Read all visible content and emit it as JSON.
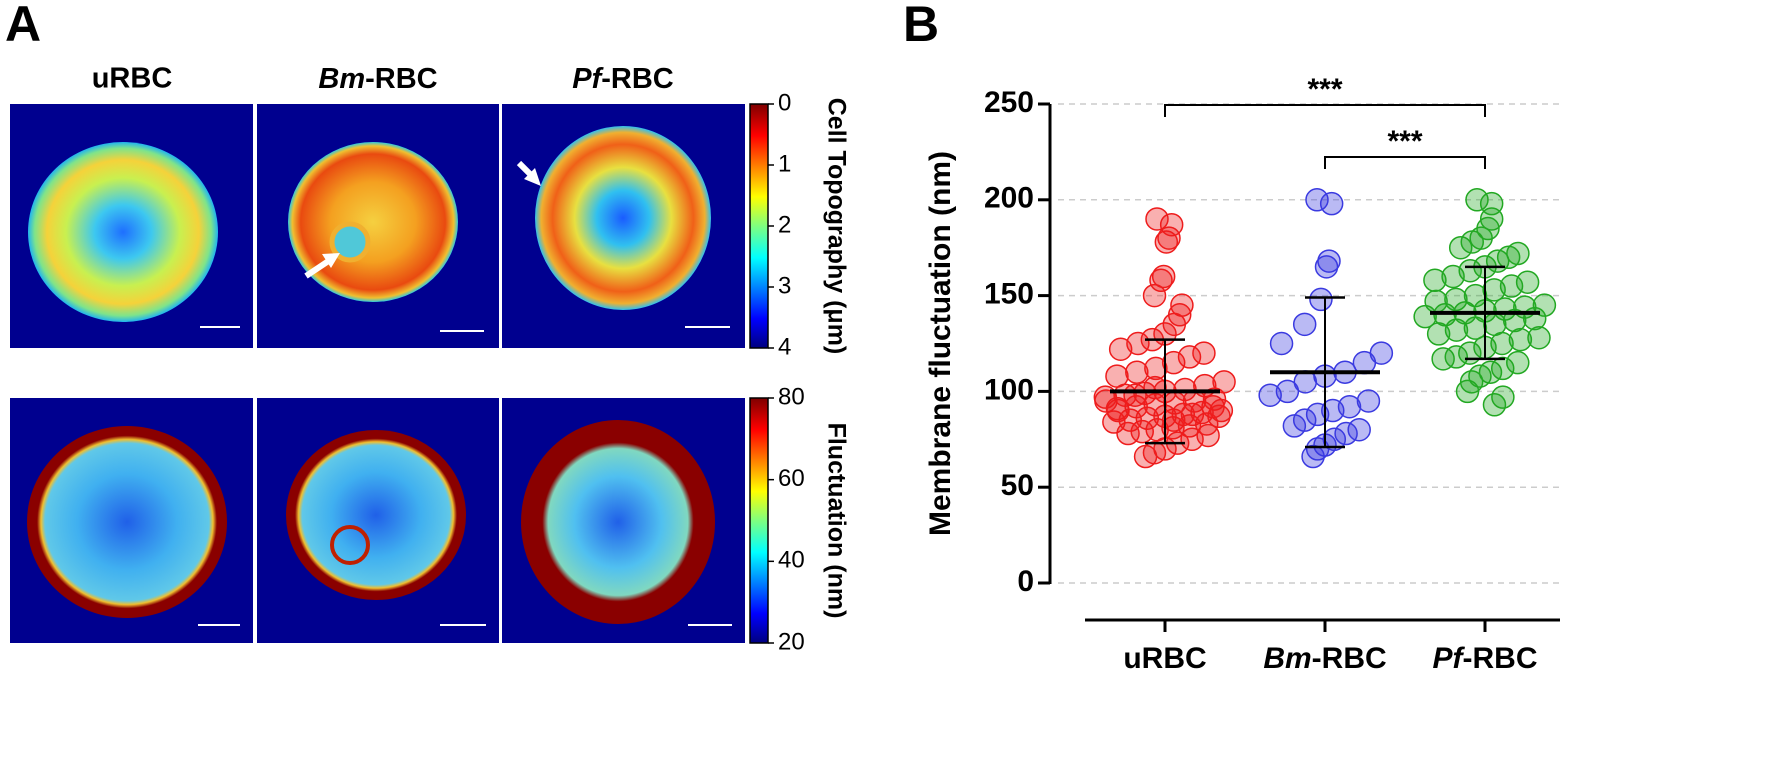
{
  "panel_a": {
    "label": "A",
    "columns": [
      "uRBC",
      "Bm-RBC",
      "Pf-RBC"
    ],
    "colorbars": [
      {
        "label": "Cell Topography (μm)",
        "lim": [
          0,
          4
        ],
        "ticks": [
          0,
          1,
          2,
          3,
          4
        ],
        "direction": "down"
      },
      {
        "label": "Fluctuation (nm)",
        "lim": [
          20,
          80
        ],
        "ticks": [
          20,
          40,
          60,
          80
        ],
        "direction": "up"
      }
    ]
  },
  "chart_data": {
    "type": "scatter",
    "panel_label": "B",
    "ylabel": "Membrane fluctuation (nm)",
    "categories": [
      "uRBC",
      "Bm-RBC",
      "Pf-RBC"
    ],
    "ylim": [
      0,
      250
    ],
    "yticks": [
      0,
      50,
      100,
      150,
      200,
      250
    ],
    "grid": true,
    "series": [
      {
        "name": "uRBC",
        "color": "#ee1c1c",
        "mean": 100,
        "sd": 27,
        "values": [
          190,
          187,
          180,
          178,
          160,
          158,
          150,
          145,
          140,
          135,
          130,
          127,
          125,
          122,
          120,
          118,
          115,
          112,
          110,
          108,
          105,
          103,
          101,
          100,
          99,
          98,
          97,
          96,
          95,
          94,
          93,
          92,
          91,
          90,
          89,
          88,
          87,
          86,
          85,
          84,
          83,
          82,
          81,
          80,
          79,
          78,
          77,
          75,
          73,
          70,
          68,
          66,
          95,
          92,
          88,
          85,
          102,
          98,
          90,
          87
        ]
      },
      {
        "name": "Bm-RBC",
        "color": "#3a3ae0",
        "mean": 110,
        "sd": 39,
        "values": [
          200,
          198,
          168,
          165,
          148,
          135,
          125,
          120,
          115,
          110,
          108,
          105,
          100,
          98,
          95,
          92,
          90,
          88,
          85,
          82,
          80,
          78,
          75,
          72,
          70,
          66
        ]
      },
      {
        "name": "Pf-RBC",
        "color": "#22a822",
        "mean": 141,
        "sd": 24,
        "values": [
          200,
          198,
          190,
          185,
          180,
          178,
          175,
          172,
          170,
          168,
          165,
          163,
          160,
          158,
          157,
          155,
          153,
          150,
          148,
          147,
          145,
          144,
          143,
          142,
          141,
          140,
          139,
          138,
          137,
          135,
          133,
          132,
          130,
          128,
          127,
          125,
          123,
          120,
          118,
          117,
          115,
          112,
          110,
          108,
          105,
          100,
          97,
          93
        ]
      }
    ],
    "significance": [
      {
        "between": [
          "uRBC",
          "Pf-RBC"
        ],
        "label": "***"
      },
      {
        "between": [
          "Bm-RBC",
          "Pf-RBC"
        ],
        "label": "***"
      }
    ]
  }
}
